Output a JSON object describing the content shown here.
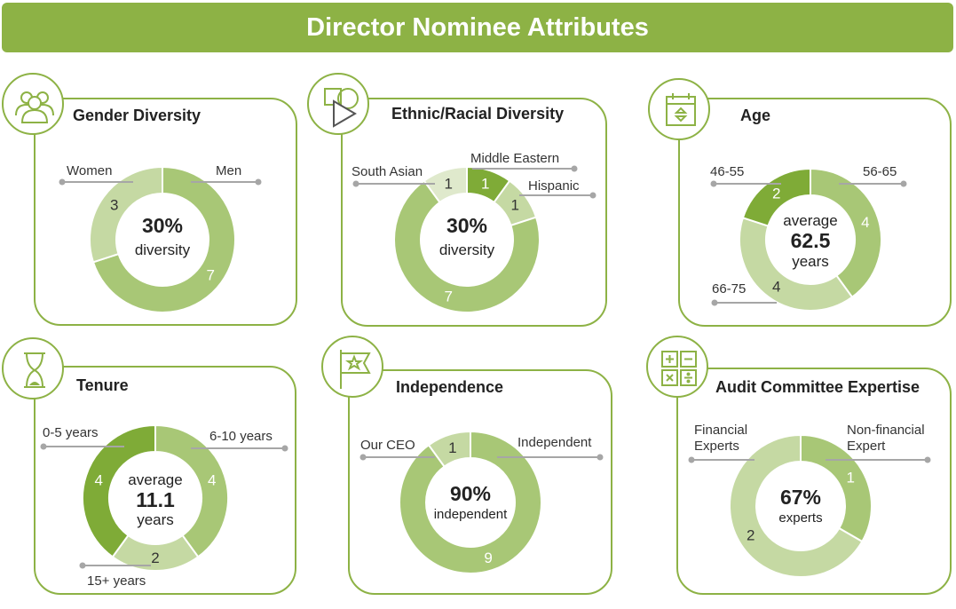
{
  "header": {
    "title": "Director Nominee Attributes"
  },
  "colors": {
    "dark": "#7fab37",
    "mid": "#a8c776",
    "light": "#c5d9a3",
    "pale": "#dfe9cc",
    "line": "#a6a6a6"
  },
  "chart_data": [
    {
      "id": "gender",
      "type": "pie",
      "title": "Gender Diversity",
      "icon": "people-icon",
      "center": [
        "30%",
        "diversity"
      ],
      "series": [
        {
          "name": "Men",
          "value": 7
        },
        {
          "name": "Women",
          "value": 3
        }
      ]
    },
    {
      "id": "ethnic",
      "type": "pie",
      "title": "Ethnic/Racial Diversity",
      "icon": "shapes-icon",
      "center": [
        "30%",
        "diversity"
      ],
      "series": [
        {
          "name": "Middle Eastern",
          "value": 1
        },
        {
          "name": "Hispanic",
          "value": 1
        },
        {
          "name": "",
          "value": 7
        },
        {
          "name": "South Asian",
          "value": 1
        }
      ]
    },
    {
      "id": "age",
      "type": "pie",
      "title": "Age",
      "icon": "calendar-icon",
      "center": [
        "average",
        "62.5",
        "years"
      ],
      "series": [
        {
          "name": "56-65",
          "value": 4
        },
        {
          "name": "66-75",
          "value": 4
        },
        {
          "name": "46-55",
          "value": 2
        }
      ]
    },
    {
      "id": "tenure",
      "type": "pie",
      "title": "Tenure",
      "icon": "hourglass-icon",
      "center": [
        "average",
        "11.1",
        "years"
      ],
      "series": [
        {
          "name": "6-10 years",
          "value": 4
        },
        {
          "name": "15+ years",
          "value": 2
        },
        {
          "name": "0-5 years",
          "value": 4
        }
      ]
    },
    {
      "id": "independence",
      "type": "pie",
      "title": "Independence",
      "icon": "flag-star-icon",
      "center": [
        "90%",
        "independent"
      ],
      "series": [
        {
          "name": "Independent",
          "value": 9
        },
        {
          "name": "Our CEO",
          "value": 1
        }
      ]
    },
    {
      "id": "audit",
      "type": "pie",
      "title": "Audit Committee Expertise",
      "icon": "calculator-icon",
      "center": [
        "67%",
        "experts"
      ],
      "series": [
        {
          "name": "Non-financial Expert",
          "value": 1
        },
        {
          "name": "Financial Experts",
          "value": 2
        }
      ]
    }
  ]
}
